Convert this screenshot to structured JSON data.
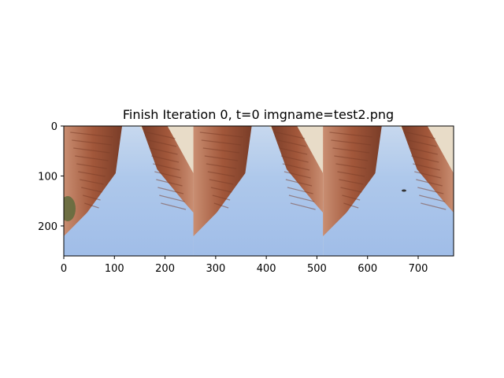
{
  "title": "Finish Iteration 0, t=0 imgname=test2.png",
  "x_axis": {
    "range": [
      0,
      770
    ],
    "ticks": [
      0,
      100,
      200,
      300,
      400,
      500,
      600,
      700
    ]
  },
  "y_axis": {
    "range": [
      0,
      260
    ],
    "ticks": [
      0,
      100,
      200
    ],
    "inverted": true
  },
  "image": {
    "description_panels": 3,
    "panels": [
      {
        "x_from": 0,
        "x_to": 256
      },
      {
        "x_from": 256,
        "x_to": 512
      },
      {
        "x_from": 512,
        "x_to": 770
      }
    ],
    "colors": {
      "sky": "#a6c3ea",
      "sky_light": "#c7d8ee",
      "wall_dark": "#7a3d28",
      "wall_mid": "#a2573a",
      "wall_light": "#c98e72",
      "haze": "#e8dcc8",
      "foliage": "#5e6b3c"
    }
  }
}
